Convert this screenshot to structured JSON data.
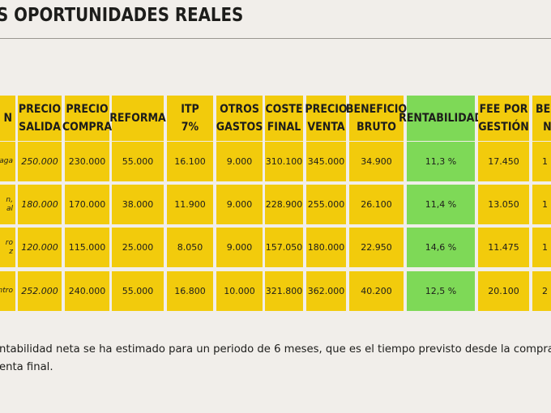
{
  "title": "S OPORTUNIDADES REALES",
  "table": {
    "headers": [
      [
        "N"
      ],
      [
        "PRECIO",
        "SALIDA"
      ],
      [
        "PRECIO",
        "COMPRA"
      ],
      [
        "REFORMA"
      ],
      [
        "ITP",
        "7%"
      ],
      [
        "OTROS",
        "GASTOS"
      ],
      [
        "COSTE",
        "FINAL"
      ],
      [
        "PRECIO",
        "VENTA"
      ],
      [
        "BENEFICIO",
        "BRUTO"
      ],
      [
        "RENTABILIDAD"
      ],
      [
        "FEE POR",
        "GESTIÓN"
      ],
      [
        "BEN",
        "N"
      ]
    ],
    "rows": [
      {
        "label": [
          "aga"
        ],
        "values": [
          "250.000",
          "230.000",
          "55.000",
          "16.100",
          "9.000",
          "310.100",
          "345.000",
          "34.900",
          "11,3 %",
          "17.450",
          "1"
        ]
      },
      {
        "label": [
          "n,",
          "al"
        ],
        "values": [
          "180.000",
          "170.000",
          "38.000",
          "11.900",
          "9.000",
          "228.900",
          "255.000",
          "26.100",
          "11,4 %",
          "13.050",
          "1"
        ]
      },
      {
        "label": [
          "ro",
          "z"
        ],
        "values": [
          "120.000",
          "115.000",
          "25.000",
          "8.050",
          "9.000",
          "157.050",
          "180.000",
          "22.950",
          "14,6 %",
          "11.475",
          "1"
        ]
      },
      {
        "label": [
          "ntro"
        ],
        "values": [
          "252.000",
          "240.000",
          "55.000",
          "16.800",
          "10.000",
          "321.800",
          "362.000",
          "40.200",
          "12,5 %",
          "20.100",
          "2"
        ]
      }
    ]
  },
  "note": {
    "line1": "ntabilidad neta se ha estimado para un periodo de 6 meses, que es el tiempo previsto desde la compra",
    "line2": "enta final."
  },
  "colors": {
    "cell": "#f2cb0c",
    "highlight": "#7ed957",
    "background": "#f1eeea"
  }
}
